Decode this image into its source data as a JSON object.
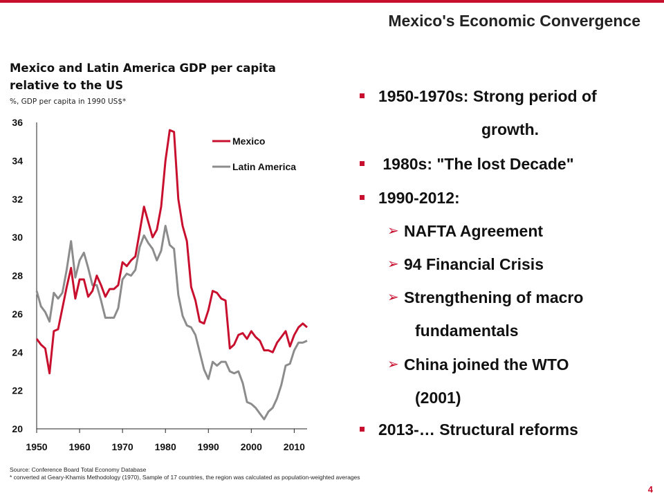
{
  "slide": {
    "title": "Mexico's Economic Convergence",
    "page_number": "4",
    "accent_color": "#c8102e"
  },
  "chart_heading": {
    "title": "Mexico and Latin America GDP per capita relative to the US",
    "subtitle": "%, GDP per capita in 1990 US$*"
  },
  "chart_data": {
    "type": "line",
    "title": "Mexico and Latin America GDP per capita relative to the US",
    "subtitle": "%, GDP per capita in 1990 US$*",
    "xlim": [
      1950,
      2013
    ],
    "ylim": [
      20,
      36
    ],
    "x_ticks": [
      "1950",
      "1960",
      "1970",
      "1980",
      "1990",
      "2000",
      "2010"
    ],
    "y_ticks": [
      "36",
      "34",
      "32",
      "30",
      "28",
      "26",
      "24",
      "22",
      "20"
    ],
    "grid": false,
    "legend_position": "top-right",
    "x": [
      1950,
      1951,
      1952,
      1953,
      1954,
      1955,
      1956,
      1957,
      1958,
      1959,
      1960,
      1961,
      1962,
      1963,
      1964,
      1965,
      1966,
      1967,
      1968,
      1969,
      1970,
      1971,
      1972,
      1973,
      1974,
      1975,
      1976,
      1977,
      1978,
      1979,
      1980,
      1981,
      1982,
      1983,
      1984,
      1985,
      1986,
      1987,
      1988,
      1989,
      1990,
      1991,
      1992,
      1993,
      1994,
      1995,
      1996,
      1997,
      1998,
      1999,
      2000,
      2001,
      2002,
      2003,
      2004,
      2005,
      2006,
      2007,
      2008,
      2009,
      2010,
      2011,
      2012,
      2013
    ],
    "series": [
      {
        "name": "Mexico",
        "color": "#c8102e",
        "values": [
          24.7,
          24.4,
          24.2,
          22.9,
          25.1,
          25.2,
          26.3,
          27.4,
          28.4,
          26.8,
          27.8,
          27.8,
          26.9,
          27.2,
          28.0,
          27.5,
          26.9,
          27.3,
          27.3,
          27.5,
          28.7,
          28.5,
          28.8,
          29.0,
          30.3,
          31.6,
          30.8,
          30.0,
          30.4,
          31.6,
          34.0,
          35.6,
          35.5,
          32.0,
          30.6,
          29.8,
          27.4,
          26.7,
          25.6,
          25.5,
          26.2,
          27.2,
          27.1,
          26.8,
          26.7,
          24.2,
          24.4,
          24.9,
          25.0,
          24.7,
          25.1,
          24.8,
          24.6,
          24.1,
          24.1,
          24.0,
          24.5,
          24.8,
          25.1,
          24.3,
          24.9,
          25.3,
          25.5,
          25.3
        ]
      },
      {
        "name": "Latin America",
        "color": "#8c8c8c",
        "values": [
          27.2,
          26.4,
          26.1,
          25.6,
          27.1,
          26.8,
          27.1,
          28.3,
          29.8,
          27.9,
          28.8,
          29.2,
          28.4,
          27.5,
          27.5,
          26.7,
          25.8,
          25.8,
          25.8,
          26.3,
          27.8,
          28.1,
          28.0,
          28.3,
          29.5,
          30.1,
          29.7,
          29.4,
          28.8,
          29.3,
          30.6,
          29.6,
          29.4,
          27.0,
          25.9,
          25.4,
          25.3,
          24.9,
          24.0,
          23.1,
          22.6,
          23.5,
          23.3,
          23.5,
          23.5,
          23.0,
          22.9,
          23.0,
          22.4,
          21.4,
          21.3,
          21.1,
          20.8,
          20.5,
          20.9,
          21.1,
          21.6,
          22.3,
          23.3,
          23.4,
          24.1,
          24.5,
          24.5,
          24.6
        ]
      }
    ]
  },
  "bullets": [
    {
      "type": "square",
      "text": "1950-1970s: Strong period of"
    },
    {
      "type": "continuation",
      "text": "growth."
    },
    {
      "type": "square",
      "text": " 1980s: \"The lost Decade\""
    },
    {
      "type": "square",
      "text": "1990-2012:"
    },
    {
      "type": "arrow",
      "text": "NAFTA Agreement"
    },
    {
      "type": "arrow",
      "text": "94 Financial Crisis"
    },
    {
      "type": "arrow",
      "text": "Strengthening of macro"
    },
    {
      "type": "continuation",
      "text": "fundamentals"
    },
    {
      "type": "arrow",
      "text": "China joined the WTO"
    },
    {
      "type": "continuation",
      "text": "(2001)"
    },
    {
      "type": "square",
      "text": "2013-… Structural reforms"
    }
  ],
  "footnotes": {
    "source": "Source: Conference Board Total Economy Database",
    "note": "* converted at Geary-Khamis Methodology (1970), Sample of 17 countries, the region was calculated as population-weighted averages"
  }
}
